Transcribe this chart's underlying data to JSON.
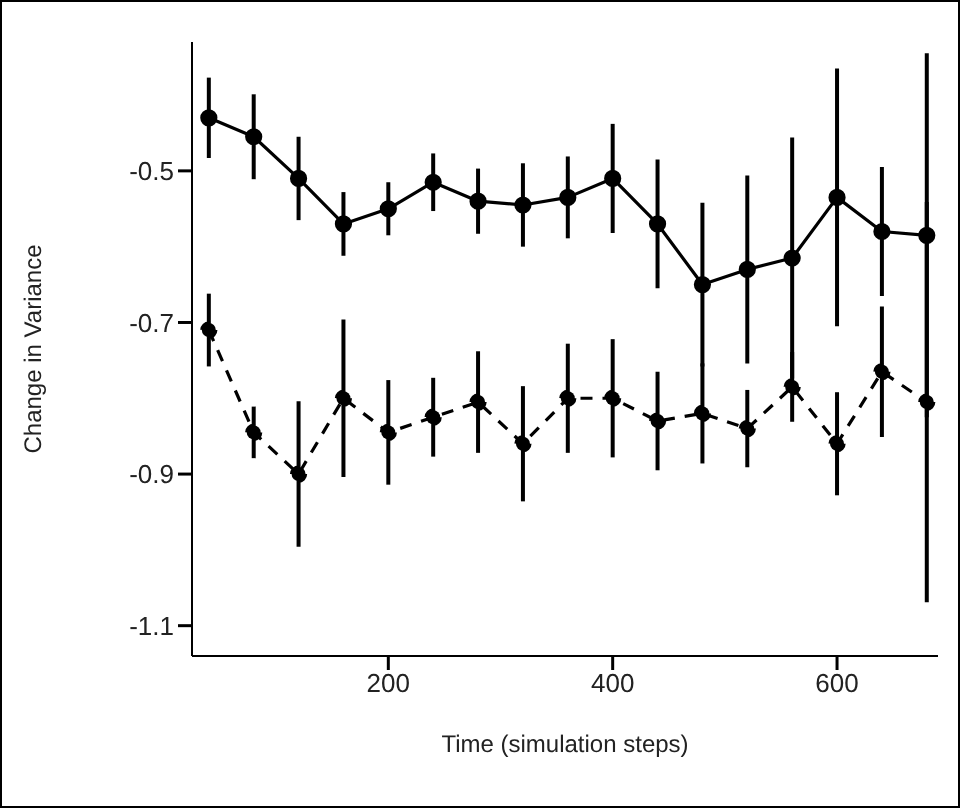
{
  "chart_data": {
    "type": "line",
    "xlabel": "Time (simulation steps)",
    "ylabel": "Change in Variance",
    "x": [
      40,
      80,
      120,
      160,
      200,
      240,
      280,
      320,
      360,
      400,
      440,
      480,
      520,
      560,
      600,
      640,
      680
    ],
    "series": [
      {
        "color": "#000000",
        "line_style": "solid",
        "values": [
          -0.43,
          -0.455,
          -0.51,
          -0.57,
          -0.55,
          -0.515,
          -0.54,
          -0.545,
          -0.535,
          -0.51,
          -0.57,
          -0.65,
          -0.63,
          -0.615,
          -0.535,
          -0.58,
          -0.585
        ],
        "errors": [
          0.053,
          0.056,
          0.055,
          0.042,
          0.035,
          0.038,
          0.043,
          0.055,
          0.054,
          0.072,
          0.085,
          0.108,
          0.124,
          0.159,
          0.17,
          0.085,
          0.24
        ]
      },
      {
        "color": "#000000",
        "line_style": "dashed",
        "values": [
          -0.71,
          -0.845,
          -0.9,
          -0.8,
          -0.845,
          -0.825,
          -0.805,
          -0.86,
          -0.8,
          -0.8,
          -0.83,
          -0.82,
          -0.84,
          -0.785,
          -0.86,
          -0.765,
          -0.805
        ],
        "errors": [
          0.048,
          0.034,
          0.096,
          0.104,
          0.069,
          0.052,
          0.067,
          0.076,
          0.072,
          0.078,
          0.065,
          0.066,
          0.051,
          0.046,
          0.068,
          0.086,
          0.264
        ]
      }
    ],
    "xlim": [
      25,
      690
    ],
    "xticks": [
      200,
      400,
      600
    ],
    "ylim": [
      -1.14,
      -0.33
    ],
    "yticks": [
      -1.1,
      -0.9,
      -0.7,
      -0.5
    ],
    "grid": false,
    "legend": false,
    "marker": "circle"
  }
}
